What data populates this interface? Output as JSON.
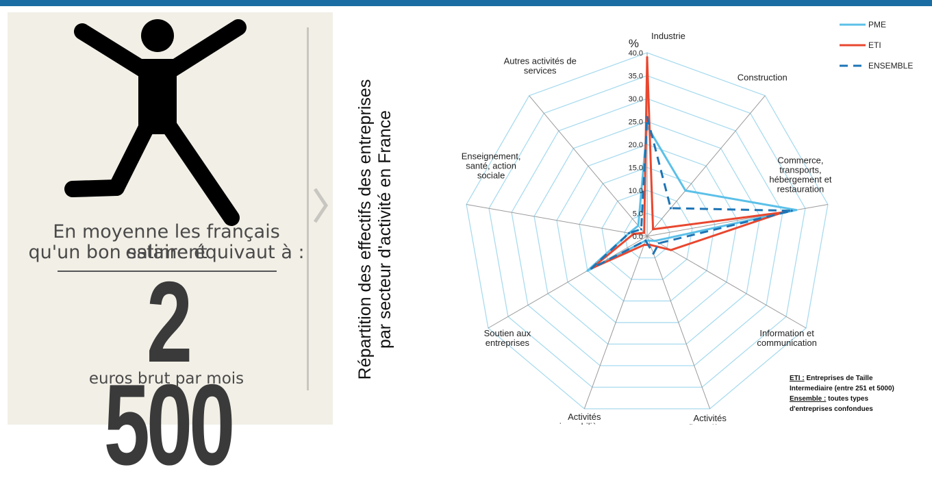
{
  "infographic": {
    "statement_line1": "En moyenne les français estiment",
    "statement_line2": "qu'un bon salaire équivaut à :",
    "amount": "2 500",
    "amount_unit": "euros brut par mois"
  },
  "chart_data": {
    "type": "radar",
    "title_line1": "Répartition des effectifs des entreprises",
    "title_line2": "par secteur d'activité en France",
    "axis_unit": "%",
    "rlim": [
      0,
      40
    ],
    "ticks": [
      0,
      5,
      10,
      15,
      20,
      25,
      30,
      35,
      40
    ],
    "tick_labels": [
      "0.0",
      "5.0",
      "10.0",
      "15.0",
      "20.0",
      "25.0",
      "30.0",
      "35.0",
      "40.0"
    ],
    "categories": [
      "Industrie",
      "Construction",
      "Commerce, transports, hébergement et restauration",
      "Information et communication",
      "Activités financières",
      "Activités immobilières",
      "Soutien aux entreprises",
      "Enseignement, santé, action sociale",
      "Autres activités de services"
    ],
    "category_label_lines": [
      [
        "Industrie"
      ],
      [
        "Construction"
      ],
      [
        "Commerce,",
        "transports,",
        "hébergement et",
        "restauration"
      ],
      [
        "Information et",
        "communication"
      ],
      [
        "Activités",
        "financières"
      ],
      [
        "Activités",
        "immobilières"
      ],
      [
        "Soutien aux",
        "entreprises"
      ],
      [
        "Enseignement,",
        "santé, action",
        "sociale"
      ],
      [
        "Autres activités de",
        "services"
      ]
    ],
    "series": [
      {
        "name": "PME",
        "color": "#5bc0e8",
        "dash": "solid",
        "values": [
          24,
          13,
          33,
          2,
          1,
          1,
          15,
          4,
          3
        ]
      },
      {
        "name": "ETI",
        "color": "#e8472f",
        "dash": "solid",
        "values": [
          39,
          2,
          30,
          6,
          2,
          2,
          14,
          3,
          1
        ]
      },
      {
        "name": "ENSEMBLE",
        "color": "#1e74b5",
        "dash": "dashed",
        "values": [
          26,
          8,
          32,
          3,
          4,
          1,
          14,
          4,
          2
        ]
      }
    ],
    "legend_position": "top-right",
    "grid": true,
    "note": {
      "eti_term": "ETI :",
      "eti_def1": " Entreprises de Taille",
      "eti_def2": "Intermediaire (entre 251 et 5000)",
      "ensemble_term": "Ensemble :",
      "ensemble_def1": " toutes types",
      "ensemble_def2": "d'entreprises confondues"
    }
  }
}
